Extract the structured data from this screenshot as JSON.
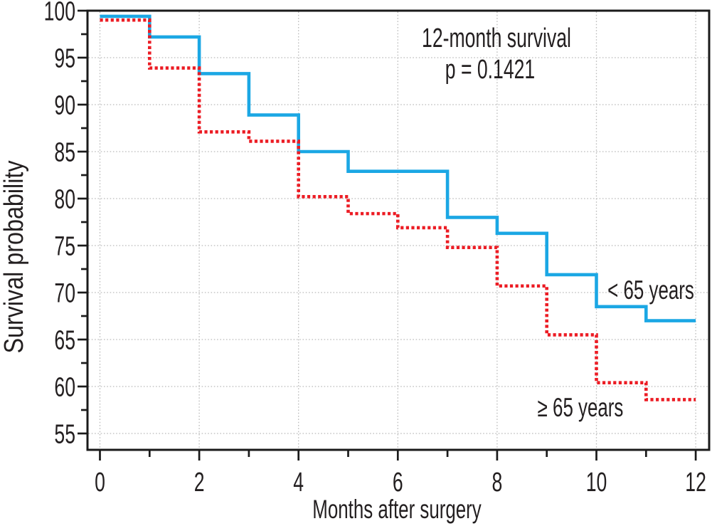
{
  "chart_data": {
    "type": "line",
    "subtype": "kaplan-meier-step-survival",
    "title": "12-month survival",
    "p_value_label": "p = 0.1421",
    "xlabel": "Months after surgery",
    "ylabel": "Survival probability",
    "x_unit": "months",
    "y_unit": "percent",
    "xlim": [
      0,
      12.3
    ],
    "ylim": [
      53.3,
      100
    ],
    "x_major_ticks": [
      0,
      2,
      4,
      6,
      8,
      10,
      12
    ],
    "x_minor_ticks": [
      1,
      3,
      5,
      7,
      9,
      11
    ],
    "y_major_ticks": [
      100,
      95,
      90,
      85,
      80,
      75,
      70,
      65,
      60,
      55
    ],
    "y_minor_ticks": [
      97.5,
      92.5,
      87.5,
      82.5,
      77.5,
      72.5,
      67.5,
      62.5,
      57.5
    ],
    "grid": {
      "style": "dotted",
      "color": "#bbbbbb",
      "vertical_at_months": [
        0,
        2,
        4,
        6,
        8,
        10,
        12
      ],
      "horizontal_at_percent": [
        95,
        90,
        85,
        80,
        75,
        70,
        65,
        60,
        55
      ]
    },
    "legend_position": "inline-labels-right",
    "axis_color": "#1a1a1a",
    "text_color": "#231f20",
    "background": "#ffffff",
    "series": [
      {
        "name": "< 65 years",
        "color": "#1ba7e4",
        "line_style": "solid",
        "interval_start_months": [
          0,
          1,
          2,
          3,
          4,
          5,
          6,
          7,
          8,
          9,
          10,
          11
        ],
        "survival_percent": [
          99.4,
          97.2,
          93.3,
          88.9,
          85.0,
          82.9,
          82.9,
          78.0,
          76.3,
          71.9,
          68.5,
          67.0
        ],
        "end_month": 12,
        "label_at": {
          "month": 11.1,
          "percent": 70.2
        }
      },
      {
        "name": "≥ 65 years",
        "color": "#ec1c24",
        "line_style": "dotted",
        "interval_start_months": [
          0,
          1,
          2,
          3,
          4,
          5,
          6,
          7,
          8,
          9,
          10,
          11
        ],
        "survival_percent": [
          99.0,
          93.9,
          87.1,
          86.1,
          80.2,
          78.4,
          76.9,
          74.8,
          70.7,
          65.5,
          60.4,
          58.6
        ],
        "end_month": 12,
        "label_at": {
          "month": 9.68,
          "percent": 57.7
        }
      }
    ]
  }
}
